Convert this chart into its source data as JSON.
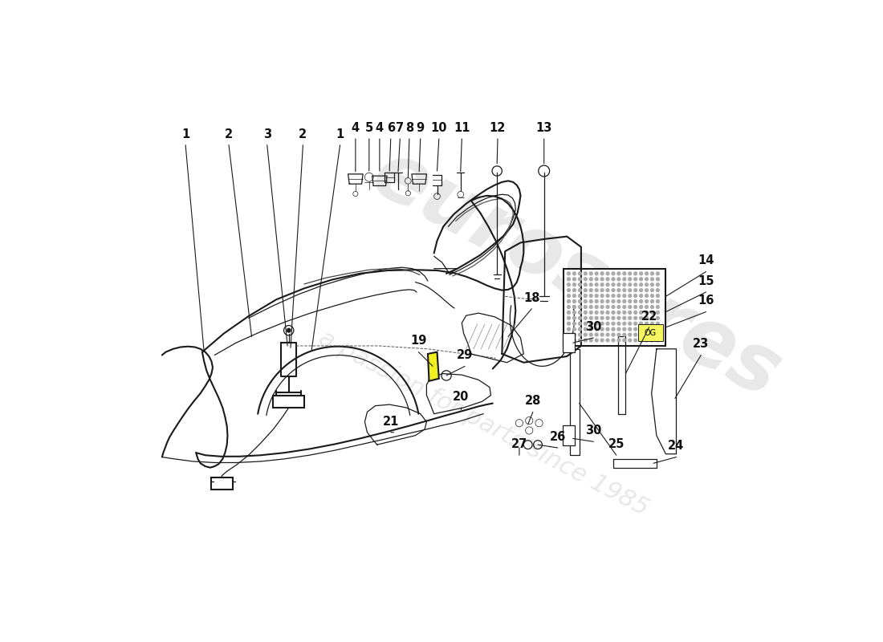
{
  "bg_color": "#ffffff",
  "line_color": "#1a1a1a",
  "label_color": "#111111",
  "wm1": "eurosares",
  "wm2": "a passion for parts since 1985",
  "figsize": [
    11.0,
    8.0
  ],
  "dpi": 100
}
